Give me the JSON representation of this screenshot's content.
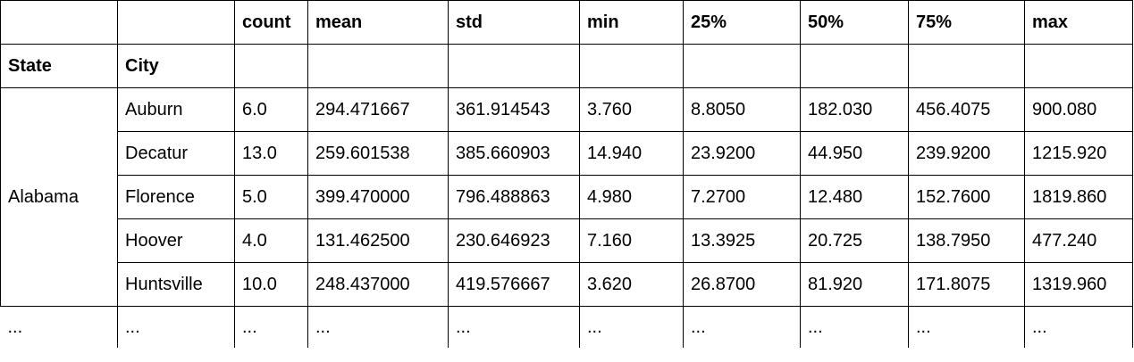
{
  "table": {
    "columns": [
      "count",
      "mean",
      "std",
      "min",
      "25%",
      "50%",
      "75%",
      "max"
    ],
    "index_names": [
      "State",
      "City"
    ],
    "state": "Alabama",
    "rows": [
      {
        "city": "Auburn",
        "values": [
          "6.0",
          "294.471667",
          "361.914543",
          "3.760",
          "8.8050",
          "182.030",
          "456.4075",
          "900.080"
        ]
      },
      {
        "city": "Decatur",
        "values": [
          "13.0",
          "259.601538",
          "385.660903",
          "14.940",
          "23.9200",
          "44.950",
          "239.9200",
          "1215.920"
        ]
      },
      {
        "city": "Florence",
        "values": [
          "5.0",
          "399.470000",
          "796.488863",
          "4.980",
          "7.2700",
          "12.480",
          "152.7600",
          "1819.860"
        ]
      },
      {
        "city": "Hoover",
        "values": [
          "4.0",
          "131.462500",
          "230.646923",
          "7.160",
          "13.3925",
          "20.725",
          "138.7950",
          "477.240"
        ]
      },
      {
        "city": "Huntsville",
        "values": [
          "10.0",
          "248.437000",
          "419.576667",
          "3.620",
          "26.8700",
          "81.920",
          "171.8075",
          "1319.960"
        ]
      }
    ],
    "ellipsis": "..."
  }
}
